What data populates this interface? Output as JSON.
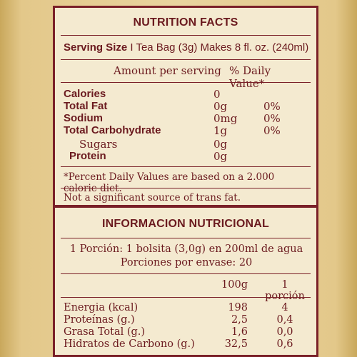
{
  "en": {
    "title": "NUTRITION FACTS",
    "serving_label": "Serving Size",
    "serving_value": "I Tea Bag (3g) Makes 8 fl. oz. (240ml)",
    "col_amount": "Amount per serving",
    "col_dv": "% Daily Value*",
    "rows": [
      {
        "label": "Calories",
        "amount": "0",
        "dv": ""
      },
      {
        "label": "Total Fat",
        "amount": "0g",
        "dv": "0%"
      },
      {
        "label": "Sodium",
        "amount": "0mg",
        "dv": "0%"
      },
      {
        "label": "Total Carbohydrate",
        "amount": "1g",
        "dv": "0%"
      },
      {
        "label": "Sugars",
        "amount": "0g",
        "dv": ""
      },
      {
        "label": "Protein",
        "amount": "0g",
        "dv": ""
      }
    ],
    "footnote": "*Percent Daily Values are based on a 2.000 calorie diet.",
    "trans_fat": "Not a significant source of trans fat."
  },
  "es": {
    "title": "INFORMACION NUTRICIONAL",
    "portion_line": "1 Porción: 1 bolsita (3,0g) en 200ml de agua",
    "portions_line": "Porciones por envase: 20",
    "col_100g": "100g",
    "col_portion": "1 porción",
    "rows": [
      {
        "label": "Energia (kcal)",
        "per100": "198",
        "portion": "4"
      },
      {
        "label": "Proteínas (g.)",
        "per100": "2,5",
        "portion": "0,4"
      },
      {
        "label": "Grasa Total (g.)",
        "per100": "1,6",
        "portion": "0,0"
      },
      {
        "label": "Hidratos de Carbono (g.)",
        "per100": "32,5",
        "portion": "0,6"
      }
    ]
  }
}
